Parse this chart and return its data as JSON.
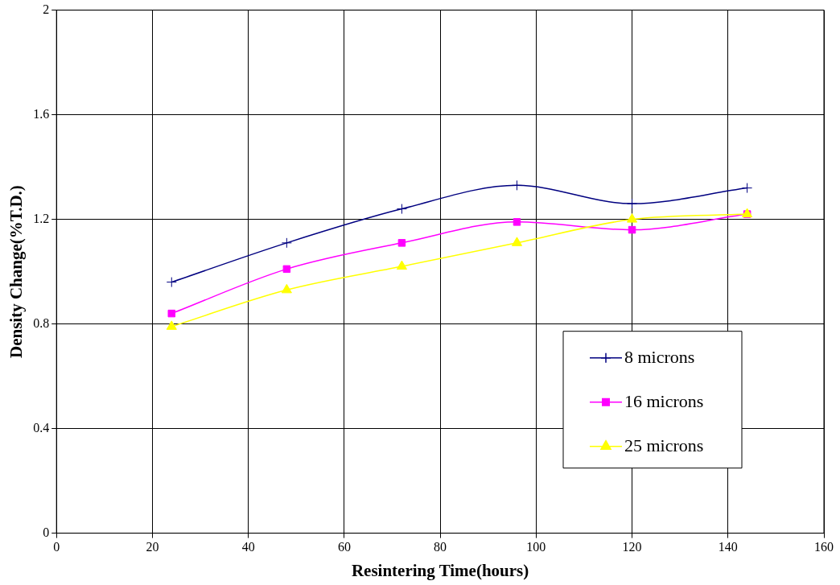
{
  "chart_data": {
    "type": "line",
    "xlabel": "Resintering Time(hours)",
    "ylabel": "Density Change(%T.D.)",
    "x": [
      24,
      48,
      72,
      96,
      120,
      144
    ],
    "series": [
      {
        "name": "8 microns",
        "color": "#000080",
        "marker": "cross",
        "values": [
          0.96,
          1.11,
          1.24,
          1.33,
          1.26,
          1.32
        ]
      },
      {
        "name": "16 microns",
        "color": "#ff00ff",
        "marker": "square",
        "values": [
          0.84,
          1.01,
          1.11,
          1.19,
          1.16,
          1.22
        ]
      },
      {
        "name": "25 microns",
        "color": "#ffff00",
        "marker": "triangle",
        "values": [
          0.79,
          0.93,
          1.02,
          1.11,
          1.2,
          1.22
        ]
      }
    ],
    "xlim": [
      0,
      160
    ],
    "xticks": [
      0,
      20,
      40,
      60,
      80,
      100,
      120,
      140,
      160
    ],
    "ylim": [
      0,
      2
    ],
    "yticks": [
      0,
      0.4,
      0.8,
      1.2,
      1.6,
      2
    ],
    "grid": true,
    "legend": "right",
    "line_style": "solid"
  }
}
